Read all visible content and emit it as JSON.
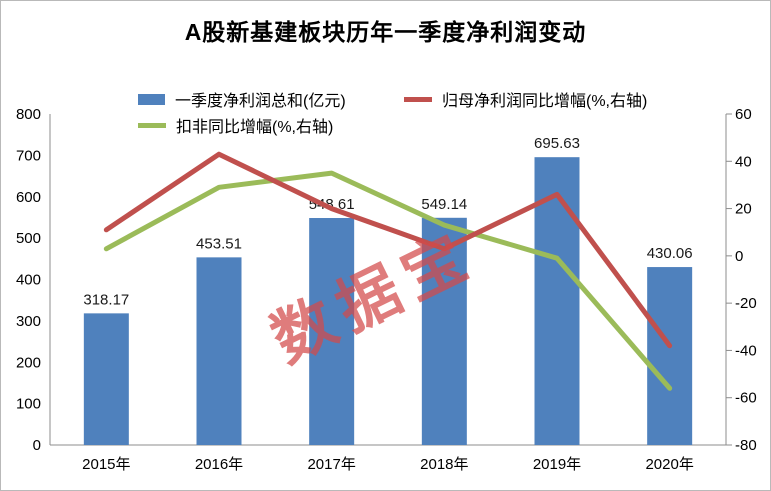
{
  "title": "A股新基建板块历年一季度净利润变动",
  "watermark": {
    "text": "数据宝",
    "color": "rgba(211,74,74,0.72)"
  },
  "colors": {
    "bar": "#4F81BD",
    "line_parent_growth": "#C0504D",
    "line_deducted_growth": "#9BBB59",
    "axis_line": "#8C8C8C",
    "label_text": "#1A1A1A",
    "chart_border": "#B9B9B9"
  },
  "chart_data": {
    "type": "bar+line combo",
    "title": "A股新基建板块历年一季度净利润变动",
    "categories": [
      "2015年",
      "2016年",
      "2017年",
      "2018年",
      "2019年",
      "2020年"
    ],
    "bar_series": {
      "name": "一季度净利润总和(亿元)",
      "axis": "left",
      "color": "#4F81BD",
      "values": [
        318.17,
        453.51,
        548.61,
        549.14,
        695.63,
        430.06
      ],
      "data_labels": [
        "318.17",
        "453.51",
        "548.61",
        "549.14",
        "695.63",
        "430.06"
      ]
    },
    "line_series": [
      {
        "name": "归母净利润同比增幅(%,右轴)",
        "axis": "right",
        "color": "#C0504D",
        "values": [
          11,
          43,
          20,
          3,
          26,
          -38
        ]
      },
      {
        "name": "扣非同比增幅(%,右轴)",
        "axis": "right",
        "color": "#9BBB59",
        "values": [
          3,
          29,
          35,
          13,
          -1,
          -56
        ]
      }
    ],
    "left_axis": {
      "min": 0,
      "max": 800,
      "step": 100
    },
    "right_axis": {
      "min": -80,
      "max": 60,
      "step": 20
    },
    "grid": false,
    "legend_position": "top"
  }
}
